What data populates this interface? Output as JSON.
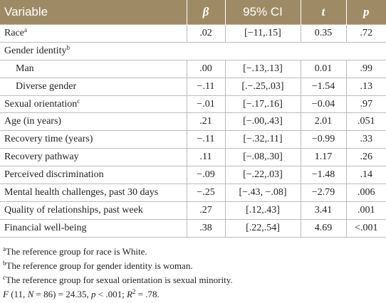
{
  "table": {
    "header": {
      "variable": "Variable",
      "beta": "β",
      "ci": "95% CI",
      "t": "t",
      "p": "p"
    },
    "rows": [
      {
        "label": "Race",
        "sup": "a",
        "beta": ".02",
        "ci": "[−11,.15]",
        "t": "0.35",
        "p": ".72"
      },
      {
        "label": "Gender identity",
        "sup": "b"
      },
      {
        "label": "Man",
        "indent": true,
        "beta": ".00",
        "ci": "[−.13,.13]",
        "t": "0.01",
        "p": ".99"
      },
      {
        "label": "Diverse gender",
        "indent": true,
        "beta": "−.11",
        "ci": "[.−.25,.03]",
        "t": "−1.54",
        "p": ".13"
      },
      {
        "label": "Sexual orientation",
        "sup": "c",
        "beta": "−.01",
        "ci": "[−.17,.16]",
        "t": "−0.04",
        "p": ".97"
      },
      {
        "label": "Age (in years)",
        "beta": ".21",
        "ci": "[−.00,.43]",
        "t": "2.01",
        "p": ".051"
      },
      {
        "label": "Recovery time (years)",
        "beta": "−.11",
        "ci": "[−.32,.11]",
        "t": "−0.99",
        "p": ".33"
      },
      {
        "label": "Recovery pathway",
        "beta": ".11",
        "ci": "[−.08,.30]",
        "t": "1.17",
        "p": ".26"
      },
      {
        "label": "Perceived discrimination",
        "beta": "−.09",
        "ci": "[−.22,.03]",
        "t": "−1.48",
        "p": ".14"
      },
      {
        "label": "Mental health challenges, past 30 days",
        "beta": "−.25",
        "ci": "[−.43, −.08]",
        "t": "−2.79",
        "p": ".006"
      },
      {
        "label": "Quality of relationships, past week",
        "beta": ".27",
        "ci": "[.12,.43]",
        "t": "3.41",
        "p": ".001"
      },
      {
        "label": "Financial well-being",
        "beta": ".38",
        "ci": "[.22,.54]",
        "t": "4.69",
        "p": "<.001"
      }
    ]
  },
  "notes": [
    {
      "sup": "a",
      "text": "The reference group for race is White."
    },
    {
      "sup": "b",
      "text": "The reference group for gender identity is woman."
    },
    {
      "sup": "c",
      "text": "The reference group for sexual orientation is sexual minority."
    }
  ],
  "stats": [
    "F",
    " (11, ",
    "N",
    " = 86) = 24.35, ",
    "p",
    " < .001; ",
    "R",
    "2",
    " = .78."
  ]
}
